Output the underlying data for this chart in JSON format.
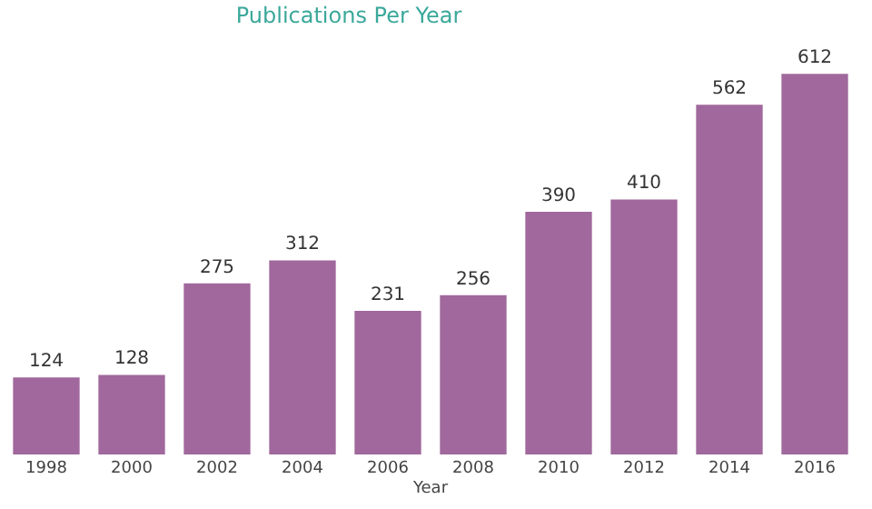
{
  "chart_data": {
    "type": "bar",
    "title": "Publications Per Year",
    "xlabel": "Year",
    "categories": [
      "1998",
      "2000",
      "2002",
      "2004",
      "2006",
      "2008",
      "2010",
      "2012",
      "2014",
      "2016"
    ],
    "values": [
      124,
      128,
      275,
      312,
      231,
      256,
      390,
      410,
      562,
      612
    ],
    "color": "#a0689c",
    "data_labels": true
  }
}
